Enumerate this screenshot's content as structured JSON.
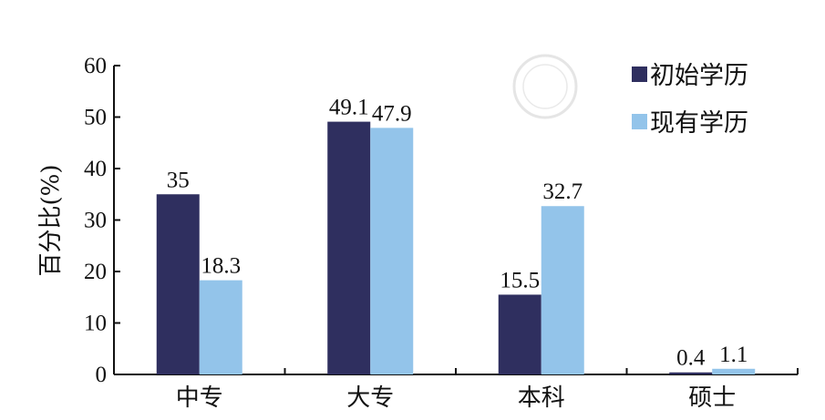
{
  "chart_data": {
    "type": "bar",
    "title": "",
    "xlabel": "",
    "ylabel": "百分比(%)",
    "ylim": [
      0,
      60
    ],
    "yticks": [
      0,
      10,
      20,
      30,
      40,
      50,
      60
    ],
    "categories": [
      "中专",
      "大专",
      "本科",
      "硕士"
    ],
    "series": [
      {
        "name": "初始学历",
        "values": [
          35,
          49.1,
          15.5,
          0.4
        ],
        "labels": [
          "35",
          "49.1",
          "15.5",
          "0.4"
        ],
        "color": "#2f2f5f"
      },
      {
        "name": "现有学历",
        "values": [
          18.3,
          47.9,
          32.7,
          1.1
        ],
        "labels": [
          "18.3",
          "47.9",
          "32.7",
          "1.1"
        ],
        "color": "#93c4ea"
      }
    ],
    "legend": "top-right",
    "grid": false
  }
}
